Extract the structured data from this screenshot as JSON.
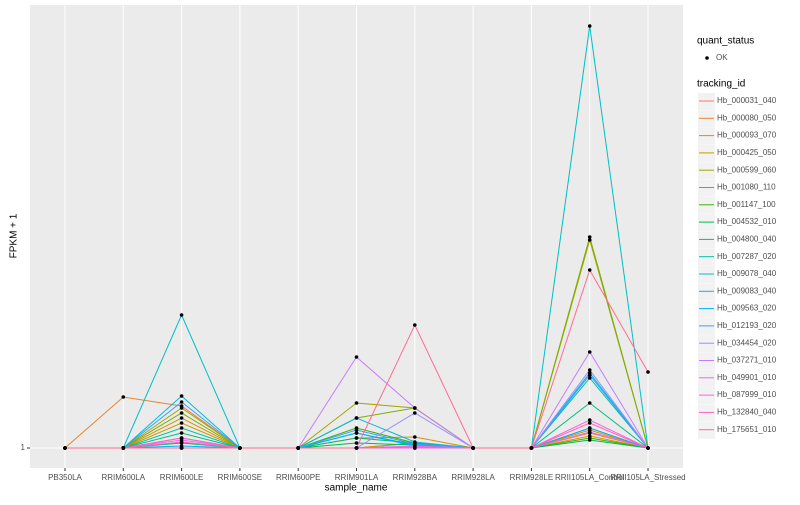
{
  "chart_data": {
    "type": "line",
    "x_label": "sample_name",
    "y_label": "FPKM + 1",
    "categories": [
      "PB350LA",
      "RRIM600LA",
      "RRIM600LE",
      "RRIM600SE",
      "RRIM600PE",
      "RRIM901LA",
      "RRIM928BA",
      "RRIM928LA",
      "RRIM928LE",
      "RRII105LA_Control",
      "RRII105LA_Stressed"
    ],
    "ylim": [
      -1,
      45.3
    ],
    "yticks": [
      1
    ],
    "grid": true,
    "point_color": "#000000",
    "shape_legend": {
      "title": "quant_status",
      "labels": [
        "OK"
      ]
    },
    "legend_title": "tracking_id",
    "series": [
      {
        "name": "Hb_000031_040",
        "color": "#F8766D",
        "values": [
          1,
          1,
          1,
          1,
          1,
          1,
          1.5,
          1,
          1,
          3,
          1
        ]
      },
      {
        "name": "Hb_000080_050",
        "color": "#EA8331",
        "values": [
          1,
          6.1,
          5.2,
          1,
          1,
          1,
          1,
          1,
          1,
          2.5,
          1
        ]
      },
      {
        "name": "Hb_000093_070",
        "color": "#D89000",
        "values": [
          1,
          1,
          4,
          1,
          1,
          2,
          2.1,
          1,
          1,
          2.2,
          1
        ]
      },
      {
        "name": "Hb_000425_050",
        "color": "#C09B00",
        "values": [
          1,
          1,
          3.5,
          1,
          1,
          1,
          1.5,
          1,
          1,
          2.8,
          1
        ]
      },
      {
        "name": "Hb_000599_060",
        "color": "#A3A500",
        "values": [
          1,
          1,
          5,
          1,
          1,
          5.5,
          5,
          1,
          1,
          21.8,
          1
        ]
      },
      {
        "name": "Hb_001080_110",
        "color": "#7CAE00",
        "values": [
          1,
          1,
          4.5,
          1,
          1,
          4,
          5,
          1,
          1,
          22.1,
          1
        ]
      },
      {
        "name": "Hb_001147_100",
        "color": "#39B600",
        "values": [
          1,
          1,
          2,
          1,
          1,
          3,
          1.5,
          1,
          1,
          2,
          1
        ]
      },
      {
        "name": "Hb_004532_010",
        "color": "#00BB4E",
        "values": [
          1,
          1,
          1.5,
          1,
          1,
          1.5,
          1.3,
          1,
          1,
          1.8,
          1
        ]
      },
      {
        "name": "Hb_004800_040",
        "color": "#00BF7D",
        "values": [
          1,
          1,
          2.5,
          1,
          1,
          2,
          1.5,
          1,
          1,
          5.5,
          1
        ]
      },
      {
        "name": "Hb_007287_020",
        "color": "#00C1A3",
        "values": [
          1,
          1,
          3,
          1,
          1,
          2.5,
          1.3,
          1,
          1,
          8,
          1
        ]
      },
      {
        "name": "Hb_009078_040",
        "color": "#00BFC4",
        "values": [
          1,
          1,
          14.3,
          1,
          1,
          1,
          1,
          1,
          1,
          43.2,
          1
        ]
      },
      {
        "name": "Hb_009083_040",
        "color": "#00BAE0",
        "values": [
          1,
          1,
          6.2,
          1,
          1,
          4,
          1.6,
          1,
          1,
          8.5,
          1
        ]
      },
      {
        "name": "Hb_009563_020",
        "color": "#00B0F6",
        "values": [
          1,
          1,
          1.2,
          1,
          1,
          2.5,
          1.2,
          1,
          1,
          3,
          1
        ]
      },
      {
        "name": "Hb_012193_020",
        "color": "#35A2FF",
        "values": [
          1,
          1,
          5.6,
          1,
          1,
          2.8,
          1.4,
          1,
          1,
          8.3,
          1
        ]
      },
      {
        "name": "Hb_034454_020",
        "color": "#9590FF",
        "values": [
          1,
          1,
          1,
          1,
          1,
          1,
          4.5,
          1,
          1,
          8.8,
          1
        ]
      },
      {
        "name": "Hb_037271_010",
        "color": "#C77CFF",
        "values": [
          1,
          1,
          1,
          1,
          1,
          10.1,
          5,
          1,
          1,
          10.6,
          1
        ]
      },
      {
        "name": "Hb_049901_010",
        "color": "#E76BF3",
        "values": [
          1,
          1,
          1.8,
          1,
          1,
          1,
          1.2,
          1,
          1,
          2.6,
          1
        ]
      },
      {
        "name": "Hb_087999_010",
        "color": "#FA62DB",
        "values": [
          1,
          1,
          2,
          1,
          1,
          1,
          1,
          1,
          1,
          3.8,
          1
        ]
      },
      {
        "name": "Hb_132840_040",
        "color": "#FF62BC",
        "values": [
          1,
          1,
          1.6,
          1,
          1,
          1,
          1.1,
          1,
          1,
          3.5,
          1
        ]
      },
      {
        "name": "Hb_175651_010",
        "color": "#FF6C91",
        "values": [
          1,
          1,
          1,
          1,
          1,
          1,
          13.3,
          1,
          1,
          18.8,
          8.6
        ]
      }
    ]
  }
}
